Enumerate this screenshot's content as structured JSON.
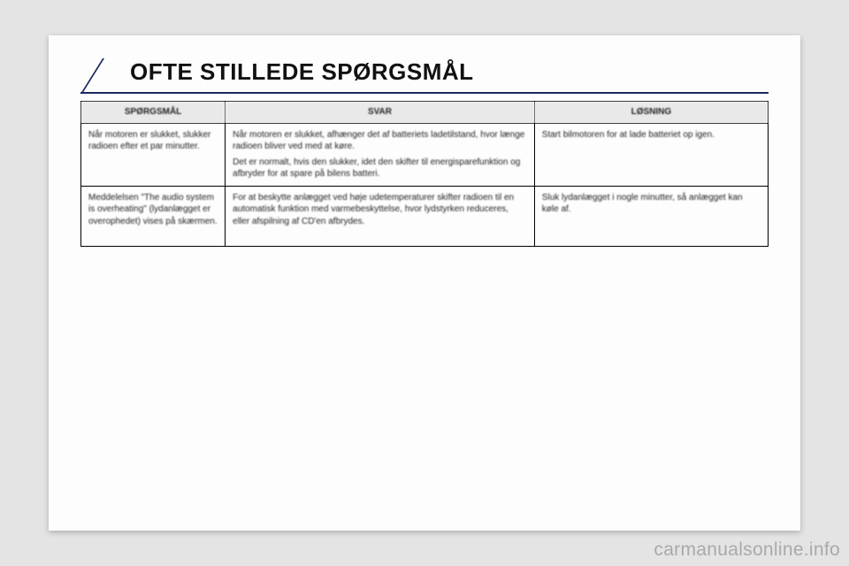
{
  "title": "OFTE STILLEDE SPØRGSMÅL",
  "columns": [
    "SPØRGSMÅL",
    "SVAR",
    "LØSNING"
  ],
  "rows": [
    {
      "q": "Når motoren er slukket, slukker radioen efter et par minutter.",
      "a1": "Når motoren er slukket, afhænger det af batteriets ladetilstand, hvor længe radioen bliver ved med at køre.",
      "a2": "Det er normalt, hvis den slukker, idet den skifter til energisparefunktion og afbryder for at spare på bilens batteri.",
      "s": "Start bilmotoren for at lade batteriet op igen."
    },
    {
      "q": "Meddelelsen \"The audio system is overheating\" (lydanlægget er overophedet) vises på skærmen.",
      "a1": "For at beskytte anlægget ved høje udetemperaturer skifter radioen til en automatisk funktion med varmebeskyttelse, hvor lydstyrken reduceres, eller afspilning af CD'en afbrydes.",
      "s": "Sluk lydanlægget i nogle minutter, så anlægget kan køle af."
    }
  ],
  "watermark": "carmanualsonline.info",
  "colors": {
    "accent": "#1a2a5e",
    "page_bg": "#fdfdfd",
    "body_bg": "#e4e4e4",
    "header_bg": "#e9e9e9",
    "border": "#000000"
  }
}
